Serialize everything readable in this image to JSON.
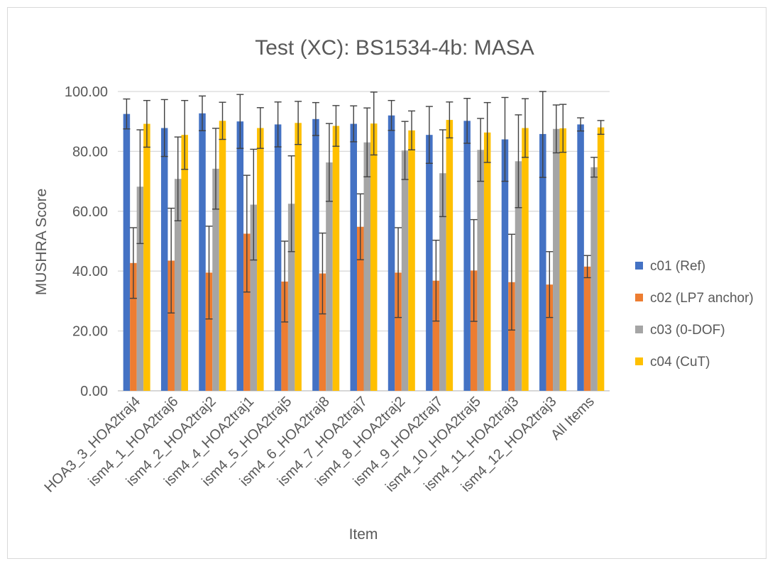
{
  "chart_data": {
    "type": "bar",
    "title": "Test (XC): BS1534-4b: MASA",
    "xlabel": "Item",
    "ylabel": "MUSHRA Score",
    "ylim": [
      0,
      100
    ],
    "yticks": [
      "0.00",
      "20.00",
      "40.00",
      "60.00",
      "80.00",
      "100.00"
    ],
    "grid": true,
    "legend_position": "right",
    "categories": [
      "HOA3_3_HOA2traj4",
      "ism4_1_HOA2traj6",
      "ism4_2_HOA2traj2",
      "ism4_4_HOA2traj1",
      "ism4_5_HOA2traj5",
      "ism4_6_HOA2traj8",
      "ism4_7_HOA2traj7",
      "ism4_8_HOA2traj2",
      "ism4_9_HOA2traj7",
      "ism4_10_HOA2traj5",
      "ism4_11_HOA2traj3",
      "ism4_12_HOA2traj3",
      "All Items"
    ],
    "series": [
      {
        "name": "c01 (Ref)",
        "color": "#4472c4",
        "values": [
          92.5,
          87.8,
          92.7,
          90.0,
          89.0,
          90.8,
          89.2,
          92.0,
          85.5,
          90.2,
          84.0,
          85.8,
          89.0
        ],
        "err": [
          5.0,
          9.5,
          5.8,
          9.0,
          7.5,
          5.5,
          6.0,
          5.0,
          9.5,
          7.5,
          14.0,
          14.5,
          2.2
        ]
      },
      {
        "name": "c02 (LP7 anchor)",
        "color": "#ed7d31",
        "values": [
          42.7,
          43.5,
          39.5,
          52.5,
          36.5,
          39.2,
          54.8,
          39.5,
          36.8,
          40.2,
          36.3,
          35.5,
          41.5
        ],
        "err": [
          11.8,
          17.5,
          15.5,
          19.5,
          13.5,
          13.5,
          11.0,
          15.0,
          13.5,
          17.0,
          16.0,
          11.0,
          3.7
        ]
      },
      {
        "name": "c03 (0-DOF)",
        "color": "#a5a5a5",
        "values": [
          68.2,
          70.8,
          74.2,
          62.2,
          62.5,
          76.3,
          83.0,
          80.3,
          72.7,
          80.5,
          76.7,
          87.5,
          74.7
        ],
        "err": [
          19.0,
          14.0,
          13.5,
          18.5,
          16.0,
          13.0,
          11.5,
          9.7,
          14.5,
          10.5,
          15.5,
          8.0,
          3.3
        ]
      },
      {
        "name": "c04 (CuT)",
        "color": "#ffc000",
        "values": [
          89.2,
          85.5,
          90.2,
          87.8,
          89.5,
          88.5,
          89.3,
          87.0,
          90.5,
          86.3,
          87.8,
          87.7,
          88.0
        ],
        "err": [
          7.8,
          11.5,
          6.2,
          6.8,
          7.2,
          6.8,
          10.5,
          6.5,
          6.0,
          10.0,
          9.8,
          8.0,
          2.3
        ]
      }
    ]
  }
}
